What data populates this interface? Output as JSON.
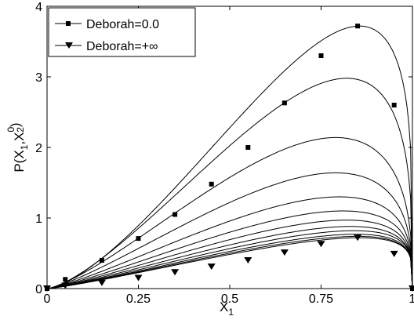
{
  "chart_data": {
    "type": "line",
    "xlabel_main": "X",
    "xlabel_sub": "1",
    "ylabel_parts": [
      "P(X",
      "1",
      ",X",
      "0",
      "2",
      ")"
    ],
    "xlim": [
      0,
      1
    ],
    "ylim": [
      0,
      4
    ],
    "x_ticks": [
      0,
      0.25,
      0.5,
      0.75,
      1
    ],
    "x_tick_labels": [
      "0",
      "0.25",
      "0.5",
      "0.75",
      "1"
    ],
    "y_ticks": [
      0,
      1,
      2,
      3,
      4
    ],
    "y_tick_labels": [
      "0",
      "1",
      "2",
      "3",
      "4"
    ],
    "grid": false,
    "legend_position": "top-left",
    "legend": [
      {
        "label": "Deborah=0.0",
        "marker": "square"
      },
      {
        "label": "Deborah=+∞",
        "marker": "triangle-down"
      }
    ],
    "curve_peaks": [
      3.72,
      2.98,
      2.14,
      1.64,
      1.3,
      1.1,
      0.97,
      0.88,
      0.82,
      0.77,
      0.74,
      0.72
    ],
    "curve_peak_x": [
      0.855,
      0.82,
      0.79,
      0.79,
      0.8,
      0.81,
      0.82,
      0.83,
      0.84,
      0.845,
      0.85,
      0.855
    ],
    "series": [
      {
        "name": "Deborah=0.0",
        "marker": "square",
        "x": [
          0,
          0.05,
          0.15,
          0.25,
          0.35,
          0.45,
          0.55,
          0.65,
          0.75,
          0.85,
          0.95,
          1.0
        ],
        "values": [
          0,
          0.13,
          0.4,
          0.71,
          1.05,
          1.48,
          2.0,
          2.63,
          3.3,
          3.72,
          2.6,
          0
        ]
      },
      {
        "name": "Deborah=+∞",
        "marker": "triangle-down",
        "x": [
          0,
          0.05,
          0.15,
          0.25,
          0.35,
          0.45,
          0.55,
          0.65,
          0.75,
          0.85,
          0.95,
          1.0
        ],
        "values": [
          0,
          0.04,
          0.08,
          0.15,
          0.23,
          0.31,
          0.4,
          0.51,
          0.63,
          0.72,
          0.49,
          0
        ]
      }
    ]
  }
}
